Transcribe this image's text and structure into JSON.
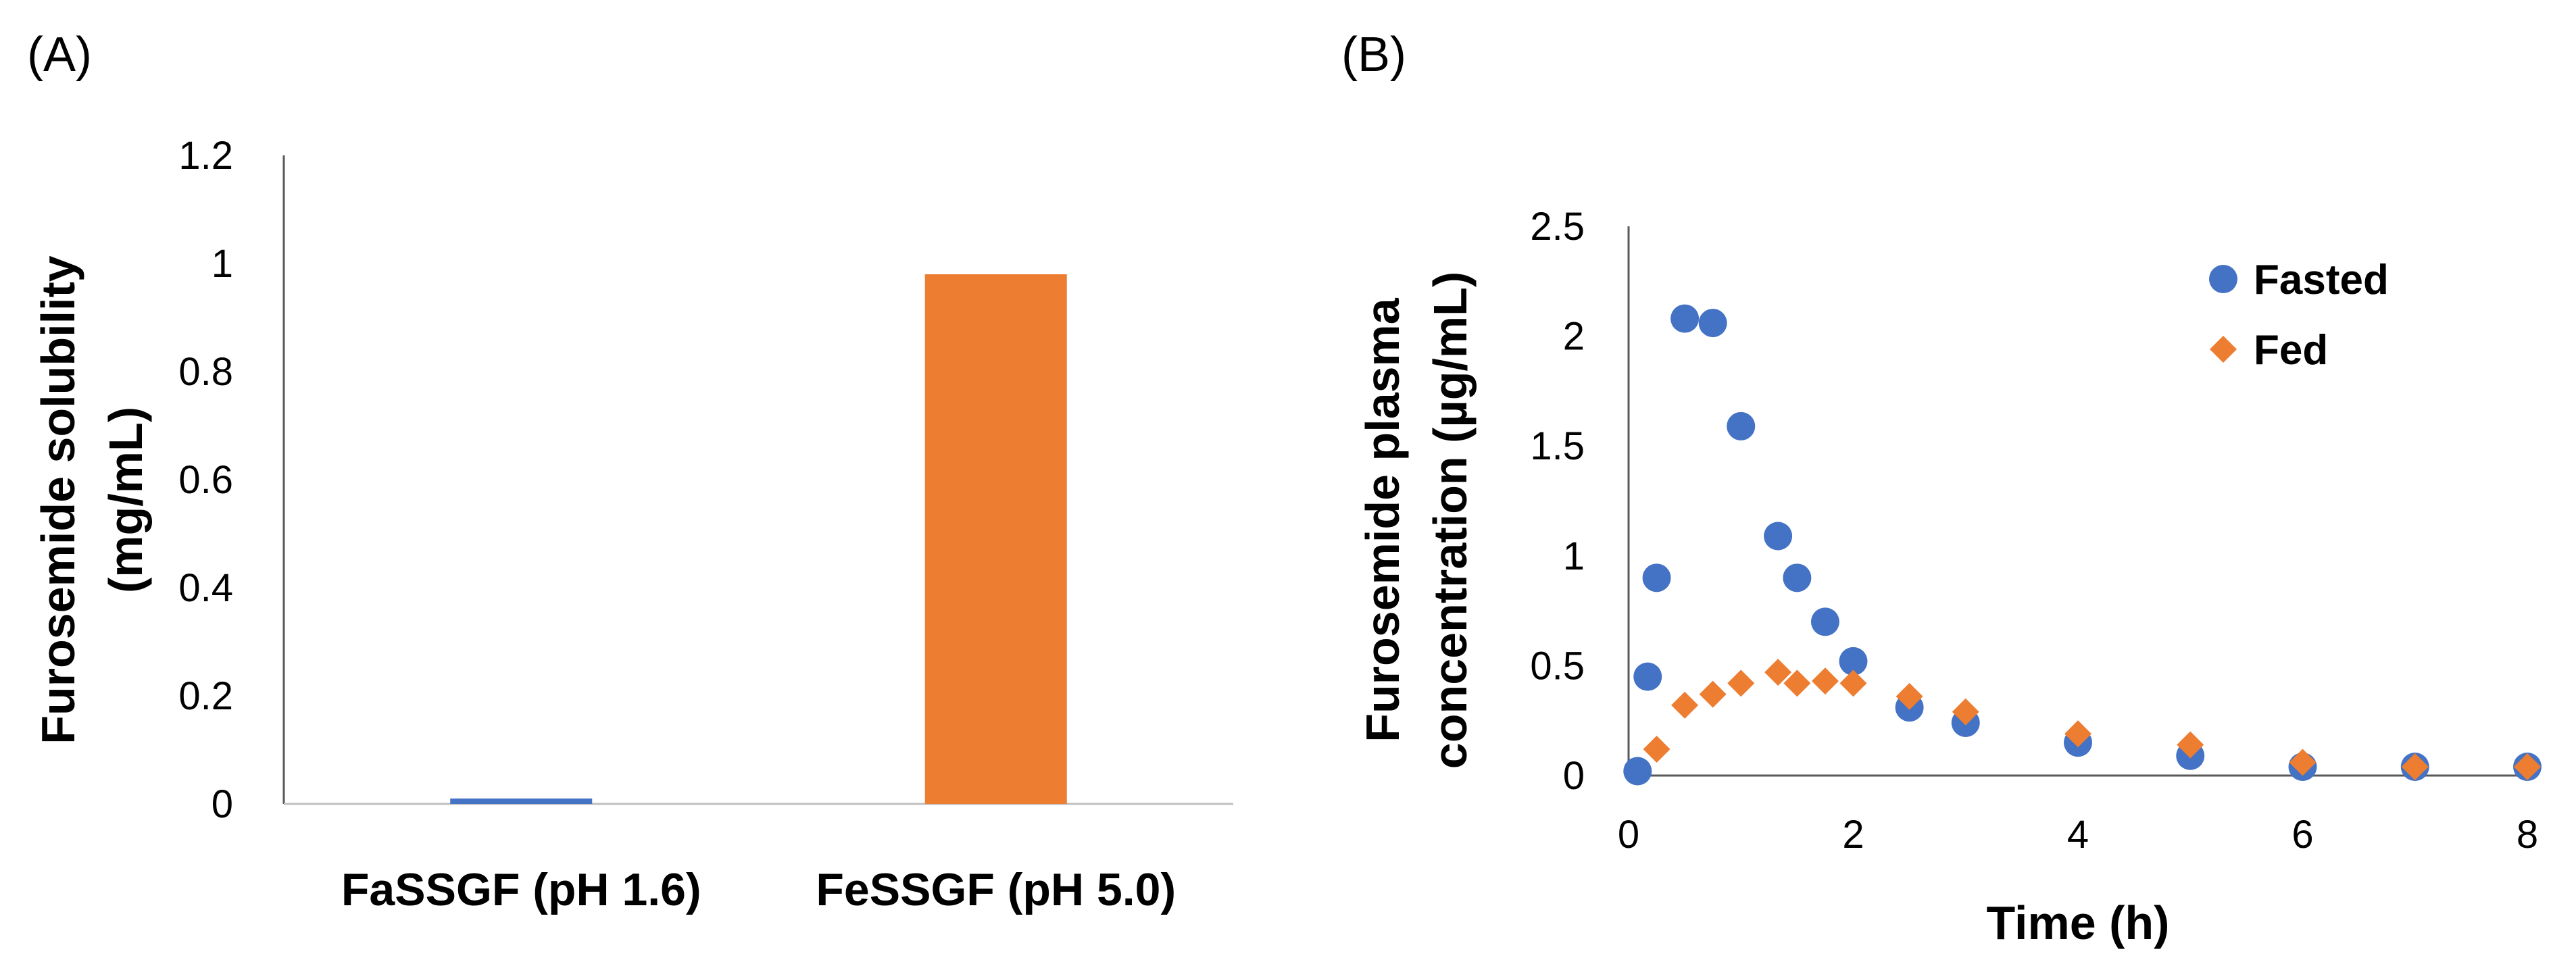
{
  "panels": {
    "a_label": "(A)",
    "b_label": "(B)"
  },
  "chart_data": [
    {
      "type": "bar",
      "categories": [
        "FaSSGF (pH 1.6)",
        "FeSSGF (pH 5.0)"
      ],
      "values": [
        0.01,
        0.98
      ],
      "colors": [
        "#4472C4",
        "#ED7D31"
      ],
      "title": "",
      "xlabel": "",
      "ylabel_line1": "Furosemide solubility",
      "ylabel_line2": "(mg/mL)",
      "ylim": [
        0,
        1.2
      ],
      "yticks": [
        "0",
        "0.2",
        "0.4",
        "0.6",
        "0.8",
        "1",
        "1.2"
      ]
    },
    {
      "type": "scatter",
      "title": "",
      "xlabel": "Time (h)",
      "ylabel_line1": "Furosemide plasma",
      "ylabel_line2": "concentration (µg/mL)",
      "xlim": [
        0,
        8
      ],
      "ylim": [
        0,
        2.5
      ],
      "xticks": [
        "0",
        "2",
        "4",
        "6",
        "8"
      ],
      "yticks": [
        "0",
        "0.5",
        "1",
        "1.5",
        "2",
        "2.5"
      ],
      "legend_position": "top-right",
      "series": [
        {
          "name": "Fasted",
          "marker": "circle",
          "color": "#4472C4",
          "x": [
            0.08,
            0.17,
            0.25,
            0.5,
            0.75,
            1.0,
            1.33,
            1.5,
            1.75,
            2.0,
            2.5,
            3.0,
            4.0,
            5.0,
            6.0,
            7.0,
            8.0
          ],
          "y": [
            0.02,
            0.45,
            0.9,
            2.08,
            2.06,
            1.59,
            1.09,
            0.9,
            0.7,
            0.52,
            0.31,
            0.24,
            0.15,
            0.09,
            0.04,
            0.04,
            0.04
          ]
        },
        {
          "name": "Fed",
          "marker": "diamond",
          "color": "#ED7D31",
          "x": [
            0.25,
            0.5,
            0.75,
            1.0,
            1.33,
            1.5,
            1.75,
            2.0,
            2.5,
            3.0,
            4.0,
            5.0,
            6.0,
            7.0,
            8.0
          ],
          "y": [
            0.12,
            0.32,
            0.37,
            0.42,
            0.47,
            0.42,
            0.43,
            0.42,
            0.36,
            0.29,
            0.19,
            0.14,
            0.06,
            0.04,
            0.04
          ]
        }
      ]
    }
  ]
}
